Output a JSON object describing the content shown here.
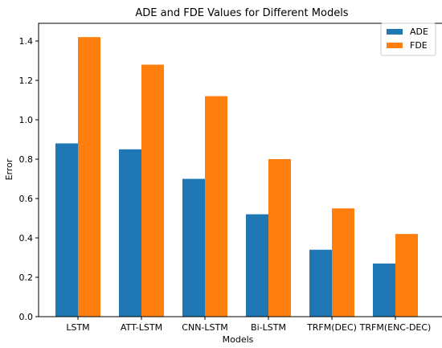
{
  "chart_data": {
    "type": "bar",
    "title": "ADE and FDE Values for Different Models",
    "xlabel": "Models",
    "ylabel": "Error",
    "categories": [
      "LSTM",
      "ATT-LSTM",
      "CNN-LSTM",
      "Bi-LSTM",
      "TRFM(DEC)",
      "TRFM(ENC-DEC)"
    ],
    "series": [
      {
        "name": "ADE",
        "color": "#1f77b4",
        "values": [
          0.88,
          0.85,
          0.7,
          0.52,
          0.34,
          0.27
        ]
      },
      {
        "name": "FDE",
        "color": "#ff7f0e",
        "values": [
          1.42,
          1.28,
          1.12,
          0.8,
          0.55,
          0.42
        ]
      }
    ],
    "yticks": [
      "0.0",
      "0.2",
      "0.4",
      "0.6",
      "0.8",
      "1.0",
      "1.2",
      "1.4"
    ],
    "ylim": [
      0,
      1.49
    ],
    "grid": false,
    "legend_position": "top-right"
  }
}
